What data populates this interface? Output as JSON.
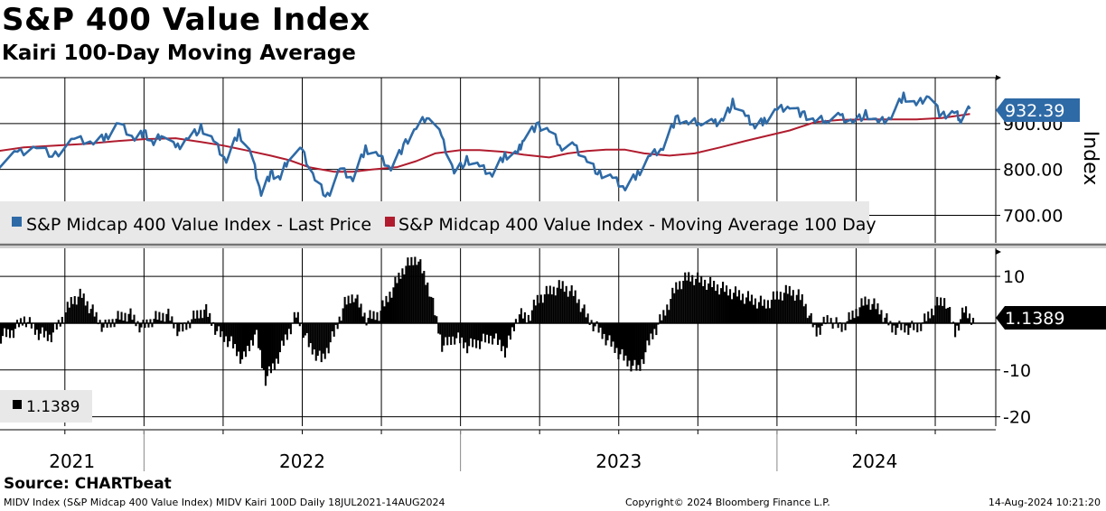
{
  "header": {
    "title": "S&P 400 Value Index",
    "subtitle": "Kairi 100-Day Moving Average"
  },
  "chart_data": [
    {
      "type": "line",
      "panel": "upper",
      "ylabel": "Index",
      "ylim": [
        640,
        1000
      ],
      "yticks": [
        700,
        800,
        900
      ],
      "ytick_labels": [
        "700.00",
        "800.00",
        "900.00"
      ],
      "last_value_label": "932.39",
      "x_range": [
        "2021-07-18",
        "2024-08-14"
      ],
      "x_labels": [
        "2021",
        "2022",
        "2023",
        "2024"
      ],
      "series": [
        {
          "name": "S&P Midcap 400 Value Index - Last Price",
          "color": "#2e6aa6",
          "x": [
            2021.54,
            2021.6,
            2021.66,
            2021.72,
            2021.78,
            2021.84,
            2021.88,
            2021.92,
            2021.97,
            2022.0,
            2022.03,
            2022.06,
            2022.1,
            2022.14,
            2022.18,
            2022.22,
            2022.26,
            2022.3,
            2022.34,
            2022.37,
            2022.4,
            2022.43,
            2022.46,
            2022.5,
            2022.54,
            2022.58,
            2022.62,
            2022.66,
            2022.7,
            2022.74,
            2022.78,
            2022.82,
            2022.86,
            2022.9,
            2022.94,
            2022.98,
            2023.02,
            2023.06,
            2023.1,
            2023.14,
            2023.18,
            2023.2,
            2023.24,
            2023.28,
            2023.32,
            2023.36,
            2023.4,
            2023.44,
            2023.48,
            2023.52,
            2023.56,
            2023.6,
            2023.64,
            2023.68,
            2023.72,
            2023.76,
            2023.8,
            2023.83,
            2023.86,
            2023.9,
            2023.93,
            2023.96,
            2024.0,
            2024.04,
            2024.08,
            2024.12,
            2024.16,
            2024.2,
            2024.24,
            2024.28,
            2024.32,
            2024.36,
            2024.4,
            2024.44,
            2024.48,
            2024.52,
            2024.56,
            2024.58,
            2024.61
          ],
          "values": [
            810,
            835,
            850,
            830,
            865,
            860,
            870,
            900,
            870,
            880,
            855,
            880,
            845,
            870,
            890,
            860,
            820,
            880,
            830,
            750,
            790,
            780,
            830,
            840,
            780,
            740,
            800,
            780,
            845,
            830,
            805,
            850,
            890,
            920,
            870,
            795,
            820,
            805,
            790,
            830,
            835,
            870,
            895,
            885,
            850,
            850,
            820,
            790,
            780,
            760,
            790,
            830,
            850,
            910,
            900,
            905,
            900,
            910,
            945,
            915,
            895,
            905,
            930,
            940,
            920,
            905,
            910,
            915,
            905,
            920,
            900,
            915,
            960,
            940,
            965,
            915,
            925,
            910,
            932
          ]
        },
        {
          "name": "S&P Midcap 400 Value Index - Moving Average 100 Day",
          "color": "#b01c2e",
          "x": [
            2021.54,
            2021.62,
            2021.72,
            2021.82,
            2021.92,
            2022.0,
            2022.1,
            2022.18,
            2022.25,
            2022.32,
            2022.4,
            2022.46,
            2022.52,
            2022.6,
            2022.66,
            2022.72,
            2022.8,
            2022.86,
            2022.92,
            2023.0,
            2023.06,
            2023.14,
            2023.2,
            2023.28,
            2023.34,
            2023.4,
            2023.46,
            2023.52,
            2023.58,
            2023.66,
            2023.74,
            2023.82,
            2023.9,
            2023.96,
            2024.04,
            2024.12,
            2024.2,
            2024.28,
            2024.36,
            2024.44,
            2024.52,
            2024.58,
            2024.61
          ],
          "values": [
            840,
            848,
            852,
            856,
            862,
            866,
            868,
            860,
            852,
            842,
            830,
            820,
            805,
            795,
            795,
            800,
            805,
            818,
            835,
            842,
            842,
            838,
            832,
            826,
            835,
            840,
            843,
            843,
            835,
            830,
            835,
            848,
            862,
            872,
            885,
            903,
            908,
            909,
            909,
            909,
            912,
            918,
            921
          ]
        }
      ]
    },
    {
      "type": "bar",
      "panel": "lower",
      "title": "Kairi 100-Day",
      "ylim": [
        -22,
        16
      ],
      "yticks": [
        -20,
        -10,
        10
      ],
      "ytick_labels": [
        "-20",
        "-10",
        "10"
      ],
      "last_value": 1.1389,
      "last_value_label": "1.1389",
      "legend_value_label": "1.1389",
      "x": [
        2021.54,
        2021.58,
        2021.62,
        2021.66,
        2021.7,
        2021.74,
        2021.77,
        2021.8,
        2021.83,
        2021.87,
        2021.91,
        2021.95,
        2021.99,
        2022.03,
        2022.07,
        2022.11,
        2022.15,
        2022.19,
        2022.23,
        2022.27,
        2022.31,
        2022.35,
        2022.38,
        2022.41,
        2022.44,
        2022.48,
        2022.52,
        2022.56,
        2022.6,
        2022.63,
        2022.66,
        2022.7,
        2022.74,
        2022.78,
        2022.82,
        2022.86,
        2022.9,
        2022.94,
        2022.98,
        2023.02,
        2023.06,
        2023.1,
        2023.14,
        2023.18,
        2023.21,
        2023.24,
        2023.28,
        2023.32,
        2023.36,
        2023.4,
        2023.44,
        2023.48,
        2023.52,
        2023.56,
        2023.6,
        2023.64,
        2023.68,
        2023.72,
        2023.76,
        2023.8,
        2023.84,
        2023.88,
        2023.92,
        2023.96,
        2024.0,
        2024.04,
        2024.08,
        2024.12,
        2024.16,
        2024.2,
        2024.24,
        2024.28,
        2024.32,
        2024.36,
        2024.4,
        2024.44,
        2024.47,
        2024.5,
        2024.53,
        2024.56,
        2024.59,
        2024.61
      ],
      "values": [
        -3,
        -2,
        1,
        -2,
        -3,
        1,
        5,
        6,
        3,
        -1,
        1,
        2,
        -1,
        1,
        2,
        -2,
        1,
        3,
        -2,
        -4,
        -8,
        -2,
        -12,
        -9,
        -4,
        2,
        -5,
        -8,
        -2,
        4,
        6,
        1,
        2,
        7,
        12,
        14,
        7,
        -5,
        -3,
        -5,
        -4,
        -3,
        -6,
        2,
        1,
        5,
        7,
        8,
        6,
        1,
        -2,
        -5,
        -8,
        -10,
        -3,
        2,
        8,
        10,
        9,
        8,
        7,
        6,
        5,
        4,
        6,
        7,
        5,
        -2,
        1,
        -1,
        2,
        5,
        3,
        -1,
        -1,
        -1,
        1,
        4,
        5,
        -2,
        3,
        1.1389
      ]
    }
  ],
  "legend": {
    "items": [
      {
        "label": "S&P Midcap 400 Value Index - Last Price",
        "color": "#2e6aa6"
      },
      {
        "label": "S&P Midcap 400 Value Index - Moving Average 100 Day",
        "color": "#b01c2e"
      }
    ]
  },
  "footer": {
    "source": "Source: CHARTbeat",
    "left": "MIDV Index (S&P Midcap 400 Value Index) MIDV Kairi 100D  Daily 18JUL2021-14AUG2024",
    "center": "Copyright© 2024 Bloomberg Finance L.P.",
    "right": "14-Aug-2024 10:21:20"
  }
}
